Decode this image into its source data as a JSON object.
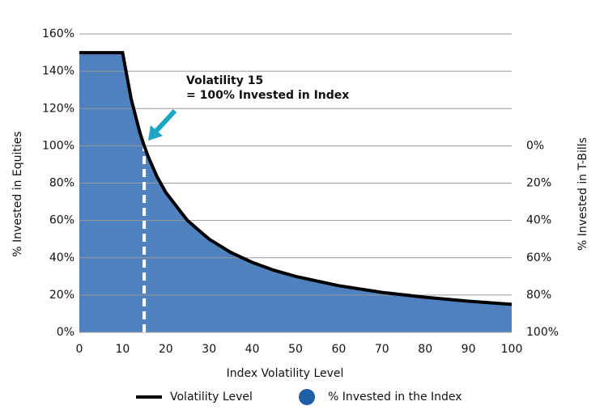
{
  "chart_data": {
    "type": "area",
    "x_label": "Index Volatility Level",
    "y_label": "% Invested in Equities",
    "y2_label": "% Invested in T-Bills",
    "annotation": [
      "Volatility 15",
      "= 100% Invested in Index"
    ],
    "reference": {
      "x": 15,
      "y": 100
    },
    "x": [
      0,
      10,
      12,
      14,
      15,
      16,
      18,
      20,
      25,
      30,
      35,
      40,
      45,
      50,
      60,
      70,
      80,
      90,
      100
    ],
    "series": [
      {
        "name": "Volatility Level",
        "color": "#000000",
        "values": [
          150,
          150,
          125,
          107.1,
          100,
          93.8,
          83.3,
          75,
          60,
          50,
          42.9,
          37.5,
          33.3,
          30,
          25,
          21.4,
          18.8,
          16.7,
          15
        ]
      },
      {
        "name": "% Invested in the Index",
        "color": "#1f5fa8",
        "fill": "#4f81bf",
        "values": [
          150,
          150,
          125,
          107.1,
          100,
          93.8,
          83.3,
          75,
          60,
          50,
          42.9,
          37.5,
          33.3,
          30,
          25,
          21.4,
          18.8,
          16.7,
          15
        ]
      }
    ],
    "xlim": [
      0,
      100
    ],
    "xticks": [
      0,
      10,
      20,
      30,
      40,
      50,
      60,
      70,
      80,
      90,
      100
    ],
    "ylim": [
      0,
      160
    ],
    "yticks": [
      {
        "value": 0,
        "label": "0%"
      },
      {
        "value": 20,
        "label": "20%"
      },
      {
        "value": 40,
        "label": "40%"
      },
      {
        "value": 60,
        "label": "60%"
      },
      {
        "value": 80,
        "label": "80%"
      },
      {
        "value": 100,
        "label": "100%"
      },
      {
        "value": 120,
        "label": "120%"
      },
      {
        "value": 140,
        "label": "140%"
      },
      {
        "value": 160,
        "label": "160%"
      }
    ],
    "y2lim": [
      100,
      -60
    ],
    "y2ticks": [
      {
        "value": 0,
        "label": "0%"
      },
      {
        "value": 20,
        "label": "20%"
      },
      {
        "value": 40,
        "label": "40%"
      },
      {
        "value": 60,
        "label": "60%"
      },
      {
        "value": 80,
        "label": "80%"
      },
      {
        "value": 100,
        "label": "100%"
      }
    ],
    "grid": true
  }
}
